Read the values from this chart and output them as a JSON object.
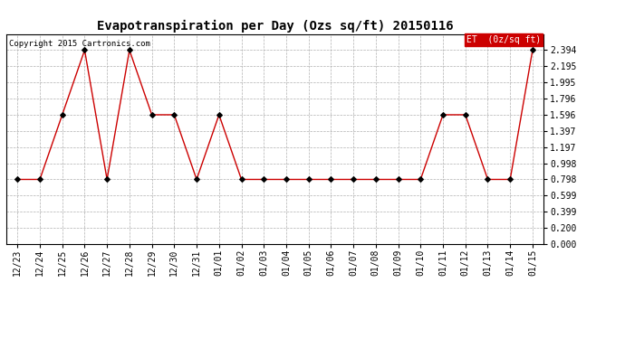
{
  "title": "Evapotranspiration per Day (Ozs sq/ft) 20150116",
  "copyright": "Copyright 2015 Cartronics.com",
  "legend_label": "ET  (0z/sq ft)",
  "x_labels": [
    "12/23",
    "12/24",
    "12/25",
    "12/26",
    "12/27",
    "12/28",
    "12/29",
    "12/30",
    "12/31",
    "01/01",
    "01/02",
    "01/03",
    "01/04",
    "01/05",
    "01/06",
    "01/07",
    "01/08",
    "01/09",
    "01/10",
    "01/11",
    "01/12",
    "01/13",
    "01/14",
    "01/15"
  ],
  "y_values": [
    0.798,
    0.798,
    1.596,
    2.394,
    0.798,
    2.394,
    1.596,
    1.596,
    0.798,
    1.596,
    0.798,
    0.798,
    0.798,
    0.798,
    0.798,
    0.798,
    0.798,
    0.798,
    0.798,
    1.596,
    1.596,
    0.798,
    0.798,
    2.394
  ],
  "y_ticks": [
    0.0,
    0.2,
    0.399,
    0.599,
    0.798,
    0.998,
    1.197,
    1.397,
    1.596,
    1.796,
    1.995,
    2.195,
    2.394
  ],
  "y_min": 0.0,
  "y_max": 2.594,
  "line_color": "#cc0000",
  "marker_color": "#000000",
  "background_color": "#ffffff",
  "grid_color": "#b0b0b0",
  "legend_bg": "#cc0000",
  "legend_text_color": "#ffffff",
  "title_fontsize": 10,
  "tick_fontsize": 7,
  "copyright_fontsize": 6.5
}
